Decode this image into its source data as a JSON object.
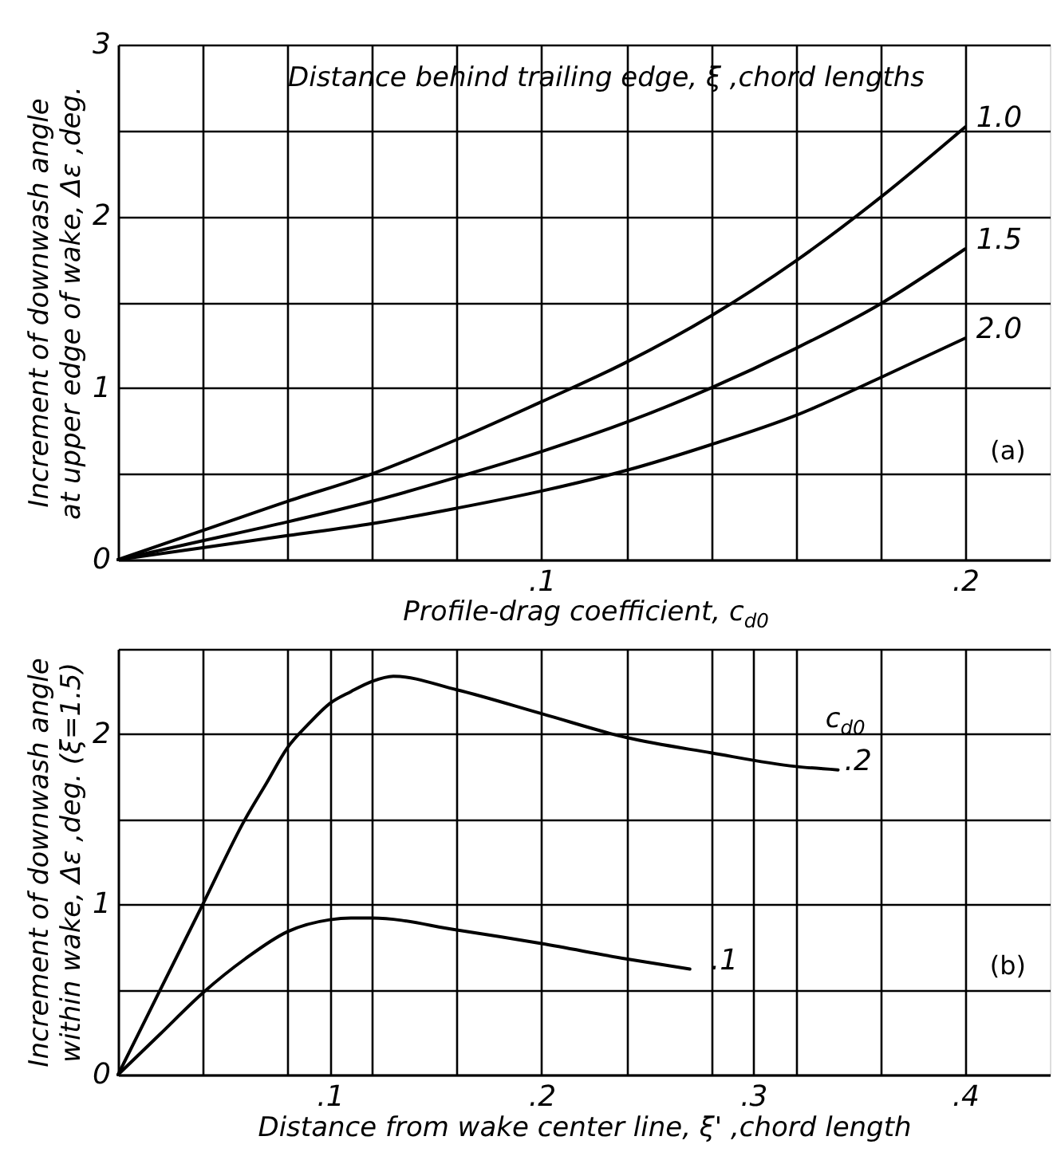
{
  "chart_data": [
    {
      "type": "line",
      "xlabel": "Profile-drag coefficient, c$_{d0}$",
      "ylabel": "Increment of downwash angle\nat upper edge of wake, Δε ,deg.",
      "legend_title": "Distance behind trailing edge, ξ ,chord lengths",
      "annotations": [
        "(a)"
      ],
      "x": [
        0,
        0.02,
        0.04,
        0.06,
        0.08,
        0.1,
        0.12,
        0.14,
        0.16,
        0.18,
        0.2
      ],
      "series": [
        {
          "name": "1.0",
          "color": "#000000",
          "values": [
            0,
            0.17,
            0.34,
            0.5,
            0.7,
            0.92,
            1.15,
            1.42,
            1.74,
            2.11,
            2.52
          ]
        },
        {
          "name": "1.5",
          "color": "#000000",
          "values": [
            0,
            0.11,
            0.22,
            0.34,
            0.48,
            0.63,
            0.8,
            1.0,
            1.23,
            1.49,
            1.81
          ]
        },
        {
          "name": "2.0",
          "color": "#000000",
          "values": [
            0,
            0.07,
            0.14,
            0.21,
            0.3,
            0.4,
            0.52,
            0.67,
            0.84,
            1.06,
            1.29
          ]
        }
      ],
      "xlim": [
        0,
        0.22
      ],
      "ylim": [
        0,
        3
      ],
      "xticks": [
        {
          "value": 0.02,
          "label": null
        },
        {
          "value": 0.04,
          "label": null
        },
        {
          "value": 0.06,
          "label": null
        },
        {
          "value": 0.08,
          "label": null
        },
        {
          "value": 0.1,
          "label": ".1"
        },
        {
          "value": 0.12,
          "label": null
        },
        {
          "value": 0.14,
          "label": null
        },
        {
          "value": 0.16,
          "label": null
        },
        {
          "value": 0.18,
          "label": null
        },
        {
          "value": 0.2,
          "label": ".2"
        }
      ],
      "yticks": [
        0,
        {
          "value": 0.5,
          "label": null
        },
        1,
        {
          "value": 1.5,
          "label": null
        },
        2,
        {
          "value": 2.5,
          "label": null
        },
        3
      ],
      "grid": true
    },
    {
      "type": "line",
      "xlabel": "Distance from wake center line, ξ' ,chord length",
      "ylabel": "Increment of downwash angle\nwithin wake, Δε ,deg. (ξ=1.5)",
      "legend_title": "c$_{d0}$",
      "annotations": [
        "(b)"
      ],
      "series": [
        {
          "name": ".2",
          "color": "#000000",
          "x": [
            0,
            0.02,
            0.04,
            0.06,
            0.07,
            0.08,
            0.09,
            0.1,
            0.11,
            0.12,
            0.13,
            0.16,
            0.2,
            0.24,
            0.28,
            0.32,
            0.34
          ],
          "values": [
            0,
            0.5,
            1.0,
            1.5,
            1.71,
            1.92,
            2.06,
            2.18,
            2.25,
            2.31,
            2.34,
            2.26,
            2.12,
            1.98,
            1.89,
            1.81,
            1.79
          ]
        },
        {
          "name": ".1",
          "color": "#000000",
          "x": [
            0,
            0.02,
            0.04,
            0.06,
            0.08,
            0.1,
            0.11,
            0.12,
            0.16,
            0.2,
            0.24,
            0.27
          ],
          "values": [
            0,
            0.24,
            0.48,
            0.68,
            0.84,
            0.91,
            0.92,
            0.92,
            0.85,
            0.77,
            0.68,
            0.62
          ]
        }
      ],
      "xlim": [
        0,
        0.44
      ],
      "ylim": [
        0,
        2.5
      ],
      "xticks": [
        {
          "value": 0.04,
          "label": null
        },
        {
          "value": 0.08,
          "label": null
        },
        {
          "value": 0.1,
          "label": ".1"
        },
        {
          "value": 0.12,
          "label": null
        },
        {
          "value": 0.16,
          "label": null
        },
        {
          "value": 0.2,
          "label": ".2"
        },
        {
          "value": 0.24,
          "label": null
        },
        {
          "value": 0.28,
          "label": null
        },
        {
          "value": 0.3,
          "label": ".3"
        },
        {
          "value": 0.32,
          "label": null
        },
        {
          "value": 0.36,
          "label": null
        },
        {
          "value": 0.4,
          "label": ".4"
        }
      ],
      "yticks": [
        0,
        {
          "value": 0.5,
          "label": null
        },
        1,
        {
          "value": 1.5,
          "label": null
        },
        2,
        {
          "value": 2.5,
          "label": null
        }
      ],
      "grid": true
    }
  ]
}
